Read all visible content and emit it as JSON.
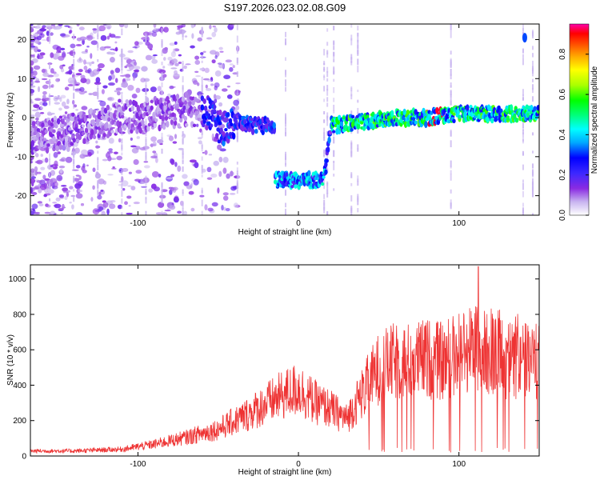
{
  "figure_title": "S197.2026.023.02.08.G09",
  "chart_data": [
    {
      "type": "heatmap",
      "title": "",
      "xlabel": "Height of straight line (km)",
      "ylabel": "Frequency (Hz)",
      "xlim": [
        -167,
        150
      ],
      "ylim": [
        -25,
        24
      ],
      "xticks": [
        -100,
        0,
        100
      ],
      "yticks": [
        -20,
        -10,
        0,
        10,
        20
      ],
      "colorbar": {
        "label": "Normalized spectral amplitude",
        "range": [
          0.0,
          0.95
        ],
        "ticks": [
          0.0,
          0.2,
          0.4,
          0.6,
          0.8
        ],
        "colors": [
          "#ffffff",
          "#c8b4f0",
          "#8a2be2",
          "#3c28ff",
          "#0000ff",
          "#00aaff",
          "#00ffff",
          "#00ff80",
          "#00ff00",
          "#aaff00",
          "#ffff00",
          "#ffaa00",
          "#ff5500",
          "#ff0000",
          "#ff00aa"
        ]
      },
      "ridge": [
        {
          "x": -167,
          "y": -5
        },
        {
          "x": -150,
          "y": -4
        },
        {
          "x": -130,
          "y": -2
        },
        {
          "x": -110,
          "y": 0
        },
        {
          "x": -90,
          "y": 1
        },
        {
          "x": -70,
          "y": 2
        },
        {
          "x": -55,
          "y": 1
        },
        {
          "x": -48,
          "y": -3
        },
        {
          "x": -40,
          "y": -1
        },
        {
          "x": -30,
          "y": -2
        },
        {
          "x": -17,
          "y": -2
        },
        {
          "x": -15,
          "y": -16
        },
        {
          "x": 0,
          "y": -16
        },
        {
          "x": 16,
          "y": -16
        },
        {
          "x": 20,
          "y": -2
        },
        {
          "x": 40,
          "y": -1
        },
        {
          "x": 60,
          "y": 0
        },
        {
          "x": 80,
          "y": 0
        },
        {
          "x": 100,
          "y": 1
        },
        {
          "x": 120,
          "y": 1
        },
        {
          "x": 150,
          "y": 1
        }
      ]
    },
    {
      "type": "line",
      "title": "",
      "xlabel": "Height of straight line (km)",
      "ylabel": "SNR (10 * v/v)",
      "xlim": [
        -167,
        150
      ],
      "ylim": [
        0,
        1080
      ],
      "xticks": [
        -100,
        0,
        100
      ],
      "yticks": [
        0,
        200,
        400,
        600,
        800,
        1000
      ],
      "color": "#ee3333",
      "envelope": [
        {
          "x": -167,
          "y": 30
        },
        {
          "x": -140,
          "y": 30
        },
        {
          "x": -110,
          "y": 40
        },
        {
          "x": -90,
          "y": 70
        },
        {
          "x": -70,
          "y": 110
        },
        {
          "x": -50,
          "y": 160
        },
        {
          "x": -35,
          "y": 230
        },
        {
          "x": -20,
          "y": 310
        },
        {
          "x": -10,
          "y": 360
        },
        {
          "x": 0,
          "y": 400
        },
        {
          "x": 10,
          "y": 320
        },
        {
          "x": 20,
          "y": 280
        },
        {
          "x": 30,
          "y": 220
        },
        {
          "x": 40,
          "y": 380
        },
        {
          "x": 50,
          "y": 520
        },
        {
          "x": 60,
          "y": 560
        },
        {
          "x": 70,
          "y": 560
        },
        {
          "x": 80,
          "y": 580
        },
        {
          "x": 90,
          "y": 560
        },
        {
          "x": 100,
          "y": 620
        },
        {
          "x": 110,
          "y": 650
        },
        {
          "x": 120,
          "y": 600
        },
        {
          "x": 135,
          "y": 560
        },
        {
          "x": 150,
          "y": 560
        }
      ],
      "peak": {
        "x": 112,
        "y": 1070
      }
    }
  ]
}
